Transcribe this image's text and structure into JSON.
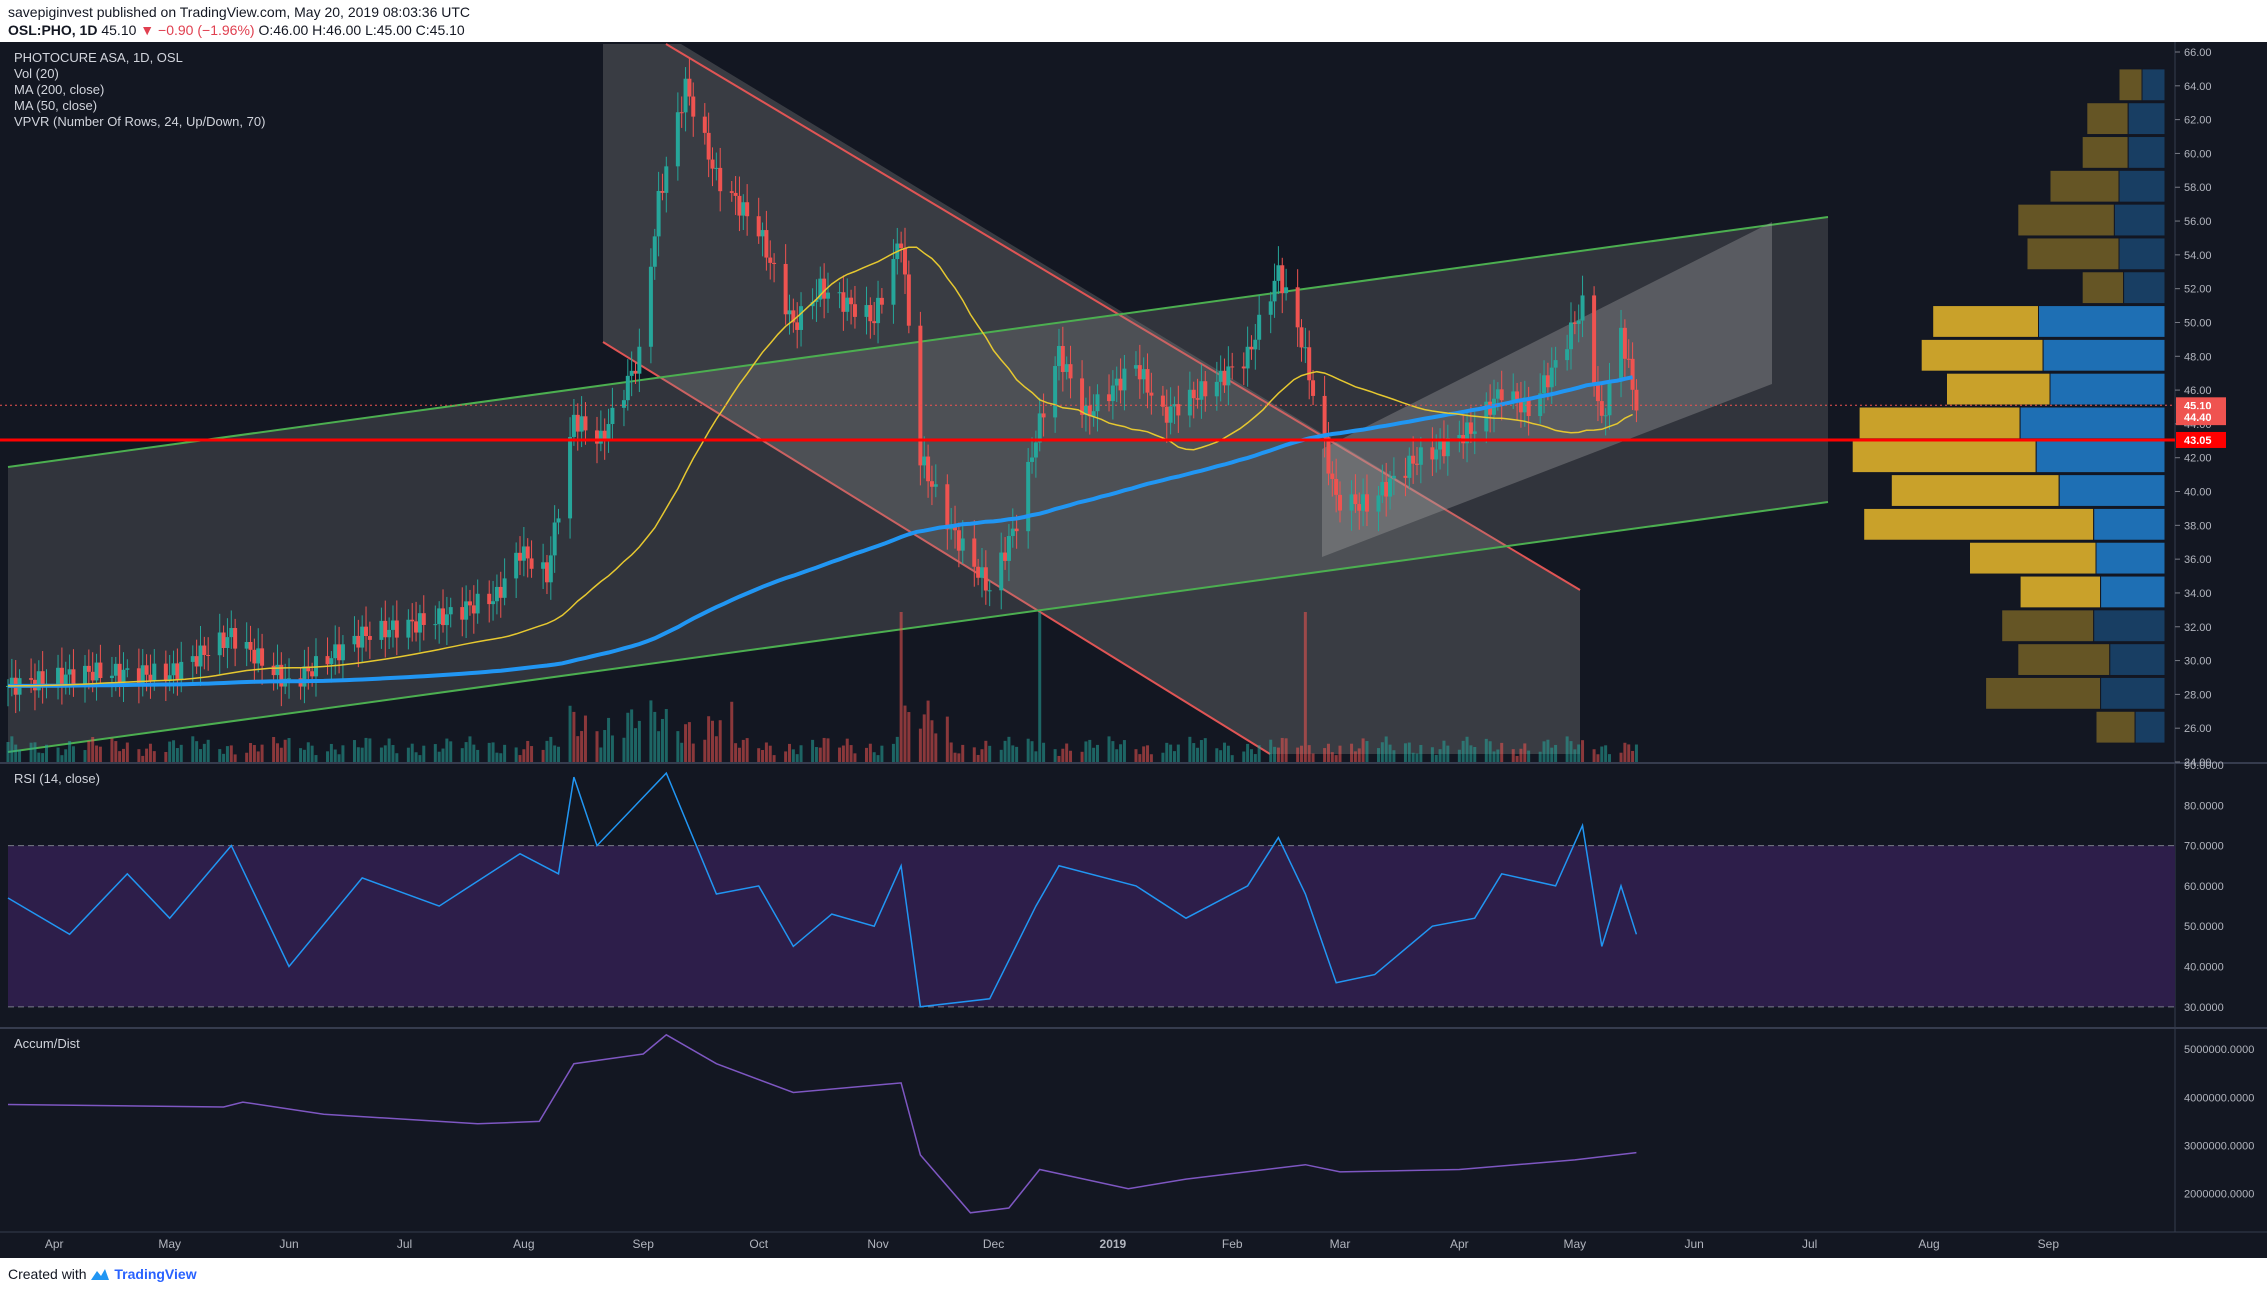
{
  "header": {
    "publisher": "savepiginvest",
    "published_text": "published on TradingView.com, May 20, 2019 08:03:36 UTC",
    "symbol": "OSL:PHO, 1D",
    "last": "45.10",
    "change": "▼ −0.90 (−1.96%)",
    "ohlc": "O:46.00 H:46.00 L:45.00 C:45.10"
  },
  "legend": {
    "title": "PHOTOCURE ASA, 1D, OSL",
    "vol": "Vol (20)",
    "ma200": "MA (200, close)",
    "ma50": "MA (50, close)",
    "vpvr": "VPVR (Number Of Rows, 24, Up/Down, 70)"
  },
  "footer": {
    "created_with": "Created with",
    "brand": "TradingView"
  },
  "colors": {
    "background": "#131722",
    "up": "#26a69a",
    "down": "#ef5350",
    "ma200": "#2196f3",
    "ma50": "#e6c830",
    "support_line": "#ff0000",
    "channel": "#4caf50",
    "rsi": "#2196f3",
    "rsi_band": "#2d1e4a",
    "ad": "#7e57c2",
    "vpvr_up": "#1e6fb4",
    "vpvr_down": "#c9a12a"
  },
  "chart_data": [
    {
      "type": "candlestick",
      "title": "PHOTOCURE ASA, 1D, OSL",
      "x_labels": [
        "Apr",
        "May",
        "Jun",
        "Jul",
        "Aug",
        "Sep",
        "Oct",
        "Nov",
        "Dec",
        "2019",
        "Feb",
        "Mar",
        "Apr",
        "May",
        "Jun",
        "Jul",
        "Aug",
        "Sep"
      ],
      "ylim": [
        24,
        66
      ],
      "y_ticks": [
        "66.00",
        "64.00",
        "62.00",
        "60.00",
        "58.00",
        "56.00",
        "54.00",
        "52.00",
        "50.00",
        "48.00",
        "46.00",
        "44.00",
        "42.00",
        "40.00",
        "38.00",
        "36.00",
        "34.00",
        "32.00",
        "30.00",
        "28.00",
        "26.00",
        "24.00"
      ],
      "close_path": [
        [
          "2018-03-20",
          28.5
        ],
        [
          "2018-04-10",
          29.3
        ],
        [
          "2018-05-01",
          29.2
        ],
        [
          "2018-05-17",
          31.5
        ],
        [
          "2018-06-01",
          28.6
        ],
        [
          "2018-06-20",
          31.5
        ],
        [
          "2018-07-10",
          32.5
        ],
        [
          "2018-07-25",
          33.8
        ],
        [
          "2018-07-31",
          36.5
        ],
        [
          "2018-08-07",
          35.0
        ],
        [
          "2018-08-14",
          44.3
        ],
        [
          "2018-08-21",
          43.0
        ],
        [
          "2018-08-31",
          48.0
        ],
        [
          "2018-09-05",
          57.2
        ],
        [
          "2018-09-12",
          64.0
        ],
        [
          "2018-09-20",
          58.6
        ],
        [
          "2018-10-01",
          55.5
        ],
        [
          "2018-10-10",
          49.8
        ],
        [
          "2018-10-17",
          52.0
        ],
        [
          "2018-10-31",
          50.2
        ],
        [
          "2018-11-07",
          55.0
        ],
        [
          "2018-11-12",
          42.0
        ],
        [
          "2018-11-20",
          37.8
        ],
        [
          "2018-11-30",
          34.2
        ],
        [
          "2018-12-07",
          38.2
        ],
        [
          "2018-12-12",
          43.2
        ],
        [
          "2018-12-18",
          48.2
        ],
        [
          "2018-12-25",
          44.5
        ],
        [
          "2019-01-07",
          47.5
        ],
        [
          "2019-01-14",
          44.5
        ],
        [
          "2019-01-28",
          46.5
        ],
        [
          "2019-02-05",
          48.0
        ],
        [
          "2019-02-13",
          53.0
        ],
        [
          "2019-02-19",
          49.0
        ],
        [
          "2019-02-28",
          39.5
        ],
        [
          "2019-03-08",
          39.2
        ],
        [
          "2019-03-20",
          41.8
        ],
        [
          "2019-03-29",
          42.8
        ],
        [
          "2019-04-05",
          43.8
        ],
        [
          "2019-04-12",
          46.0
        ],
        [
          "2019-04-19",
          44.8
        ],
        [
          "2019-04-26",
          47.5
        ],
        [
          "2019-05-03",
          51.0
        ],
        [
          "2019-05-08",
          44.0
        ],
        [
          "2019-05-13",
          49.5
        ],
        [
          "2019-05-17",
          45.1
        ]
      ],
      "last_price": 45.1,
      "price_labels": [
        "45.10",
        "44.40",
        "43.05"
      ],
      "horizontal_level": 43.05,
      "volume_spikes": [
        [
          "2018-11-07",
          "high"
        ],
        [
          "2018-12-13",
          "high"
        ],
        [
          "2019-02-20",
          "high"
        ]
      ],
      "vpvr_rows": [
        {
          "price": 64.0,
          "up": 1.0,
          "down": 1.0
        },
        {
          "price": 62.0,
          "up": 1.6,
          "down": 1.8
        },
        {
          "price": 60.0,
          "up": 1.6,
          "down": 2.0
        },
        {
          "price": 58.0,
          "up": 2.0,
          "down": 3.0
        },
        {
          "price": 56.0,
          "up": 2.2,
          "down": 4.2
        },
        {
          "price": 54.0,
          "up": 2.0,
          "down": 4.0
        },
        {
          "price": 52.0,
          "up": 1.8,
          "down": 1.8
        },
        {
          "price": 50.0,
          "up": 5.5,
          "down": 4.6
        },
        {
          "price": 48.0,
          "up": 5.3,
          "down": 5.3
        },
        {
          "price": 46.0,
          "up": 5.0,
          "down": 4.5
        },
        {
          "price": 44.0,
          "up": 6.3,
          "down": 7.0
        },
        {
          "price": 42.0,
          "up": 5.6,
          "down": 8.0
        },
        {
          "price": 40.0,
          "up": 4.6,
          "down": 7.3
        },
        {
          "price": 38.0,
          "up": 3.1,
          "down": 10.0
        },
        {
          "price": 36.0,
          "up": 3.0,
          "down": 5.5
        },
        {
          "price": 34.0,
          "up": 2.8,
          "down": 3.5
        },
        {
          "price": 32.0,
          "up": 3.1,
          "down": 4.0
        },
        {
          "price": 30.0,
          "up": 2.4,
          "down": 4.0
        },
        {
          "price": 28.0,
          "up": 2.8,
          "down": 5.0
        },
        {
          "price": 26.0,
          "up": 1.3,
          "down": 1.7
        }
      ]
    },
    {
      "type": "line",
      "title": "RSI (14, close)",
      "ylim": [
        25,
        90
      ],
      "y_ticks": [
        "90.0000",
        "80.0000",
        "70.0000",
        "60.0000",
        "50.0000",
        "40.0000",
        "30.0000"
      ],
      "band": [
        30,
        70
      ],
      "points": [
        [
          "2018-03-20",
          57
        ],
        [
          "2018-04-05",
          48
        ],
        [
          "2018-04-20",
          63
        ],
        [
          "2018-05-01",
          52
        ],
        [
          "2018-05-17",
          70
        ],
        [
          "2018-06-01",
          40
        ],
        [
          "2018-06-20",
          62
        ],
        [
          "2018-07-10",
          55
        ],
        [
          "2018-07-31",
          68
        ],
        [
          "2018-08-10",
          63
        ],
        [
          "2018-08-14",
          87
        ],
        [
          "2018-08-20",
          70
        ],
        [
          "2018-09-07",
          88
        ],
        [
          "2018-09-20",
          58
        ],
        [
          "2018-10-01",
          60
        ],
        [
          "2018-10-10",
          45
        ],
        [
          "2018-10-20",
          53
        ],
        [
          "2018-10-31",
          50
        ],
        [
          "2018-11-07",
          65
        ],
        [
          "2018-11-12",
          30
        ],
        [
          "2018-11-30",
          32
        ],
        [
          "2018-12-12",
          55
        ],
        [
          "2018-12-18",
          65
        ],
        [
          "2019-01-07",
          60
        ],
        [
          "2019-01-20",
          52
        ],
        [
          "2019-02-05",
          60
        ],
        [
          "2019-02-13",
          72
        ],
        [
          "2019-02-20",
          58
        ],
        [
          "2019-02-28",
          36
        ],
        [
          "2019-03-10",
          38
        ],
        [
          "2019-03-25",
          50
        ],
        [
          "2019-04-05",
          52
        ],
        [
          "2019-04-12",
          63
        ],
        [
          "2019-04-26",
          60
        ],
        [
          "2019-05-03",
          75
        ],
        [
          "2019-05-08",
          45
        ],
        [
          "2019-05-13",
          60
        ],
        [
          "2019-05-17",
          48
        ]
      ]
    },
    {
      "type": "line",
      "title": "Accum/Dist",
      "ylim": [
        1200000,
        5400000
      ],
      "y_ticks": [
        "5000000.0000",
        "4000000.0000",
        "3000000.0000",
        "2000000.0000"
      ],
      "points": [
        [
          "2018-03-20",
          3850000
        ],
        [
          "2018-05-15",
          3800000
        ],
        [
          "2018-05-20",
          3900000
        ],
        [
          "2018-06-10",
          3650000
        ],
        [
          "2018-07-20",
          3450000
        ],
        [
          "2018-08-05",
          3500000
        ],
        [
          "2018-08-14",
          4700000
        ],
        [
          "2018-09-01",
          4900000
        ],
        [
          "2018-09-07",
          5300000
        ],
        [
          "2018-09-20",
          4700000
        ],
        [
          "2018-10-10",
          4100000
        ],
        [
          "2018-11-07",
          4300000
        ],
        [
          "2018-11-12",
          2800000
        ],
        [
          "2018-11-25",
          1600000
        ],
        [
          "2018-12-05",
          1700000
        ],
        [
          "2018-12-13",
          2500000
        ],
        [
          "2019-01-05",
          2100000
        ],
        [
          "2019-01-20",
          2300000
        ],
        [
          "2019-02-20",
          2600000
        ],
        [
          "2019-03-01",
          2450000
        ],
        [
          "2019-04-01",
          2500000
        ],
        [
          "2019-05-01",
          2700000
        ],
        [
          "2019-05-17",
          2850000
        ]
      ]
    }
  ]
}
